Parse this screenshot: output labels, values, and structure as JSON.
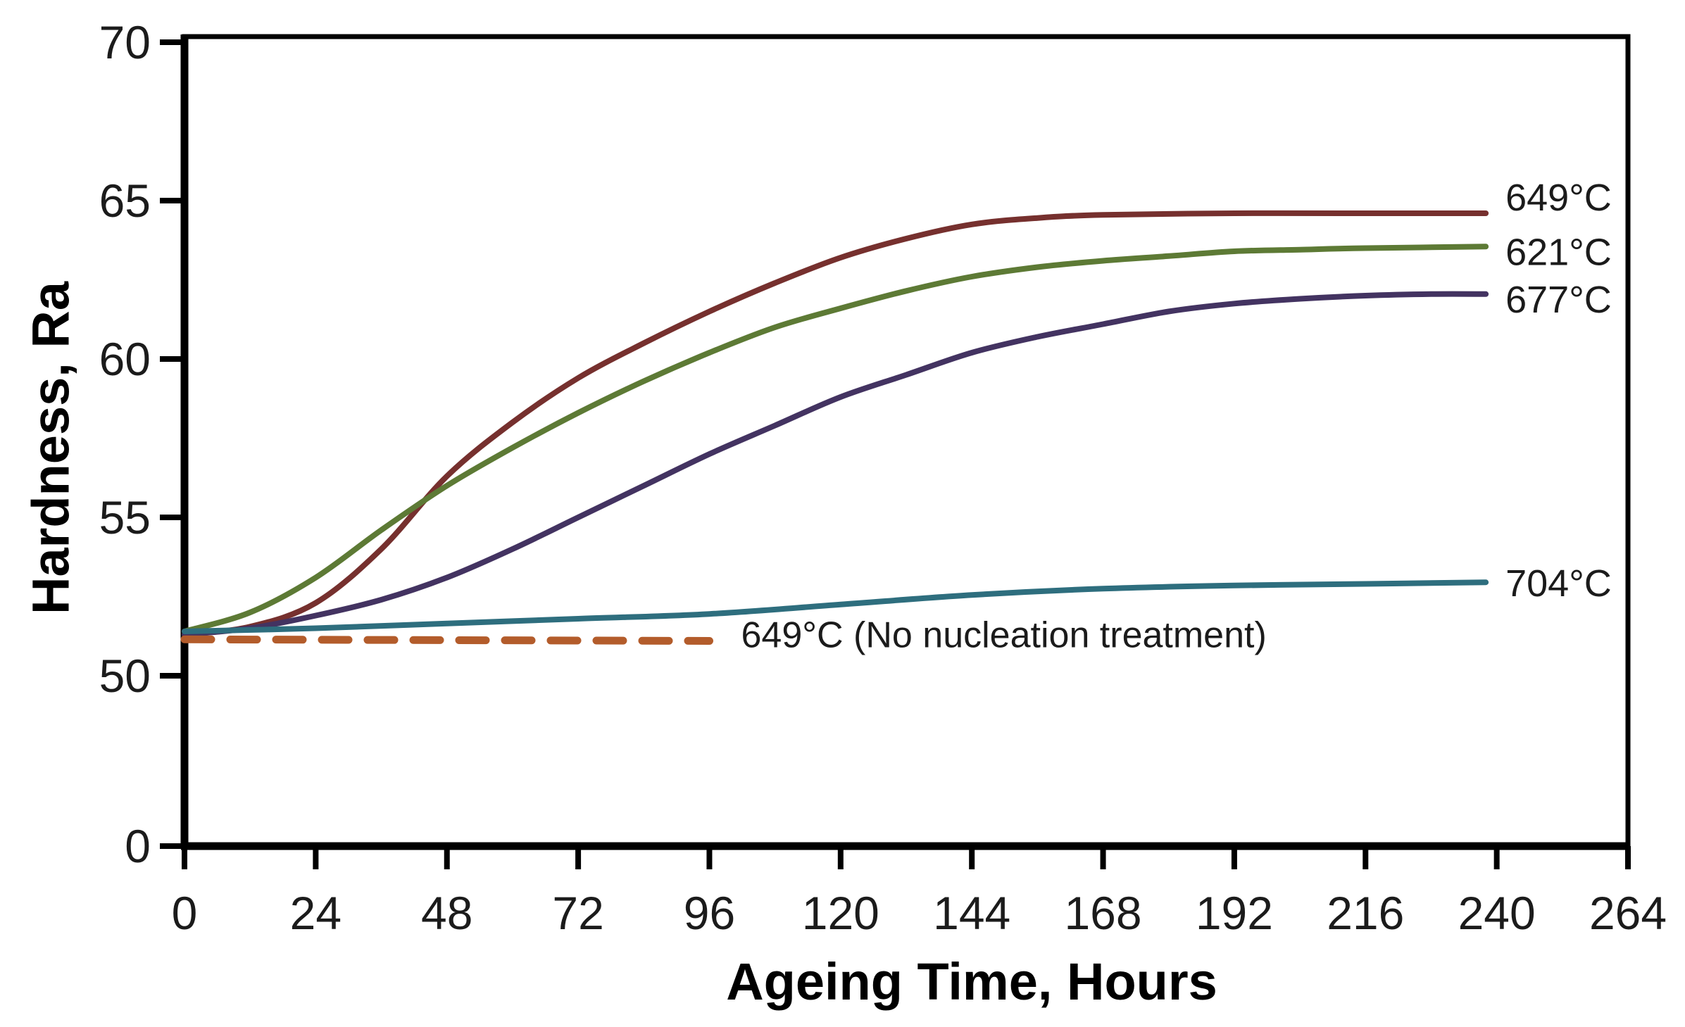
{
  "figure": {
    "background_color": "#ffffff",
    "text_color": "#1b1b1b",
    "axis_color": "#000000"
  },
  "chart_data": {
    "type": "line",
    "title": "",
    "xlabel": "Ageing Time, Hours",
    "ylabel": "Hardness, Ra",
    "grid": false,
    "legend_position": "labels at line ends (right side) and inline",
    "x_axis": {
      "ticks": [
        0,
        24,
        48,
        72,
        96,
        120,
        144,
        168,
        192,
        216,
        240,
        264
      ],
      "range": [
        0,
        264
      ]
    },
    "y_axis": {
      "ticks": [
        70,
        65,
        60,
        55,
        50,
        0
      ],
      "upper_range": [
        50,
        70
      ],
      "broken_axis": true,
      "note": "axis compressed between 0 and 50"
    },
    "series": [
      {
        "name": "649°C",
        "color": "#76302e",
        "dashed": false,
        "label_placement": "end",
        "points": [
          [
            0,
            51.3
          ],
          [
            12,
            51.55
          ],
          [
            24,
            52.3
          ],
          [
            36,
            54.0
          ],
          [
            48,
            56.3
          ],
          [
            60,
            58.0
          ],
          [
            72,
            59.4
          ],
          [
            84,
            60.5
          ],
          [
            96,
            61.5
          ],
          [
            108,
            62.4
          ],
          [
            120,
            63.2
          ],
          [
            132,
            63.8
          ],
          [
            144,
            64.25
          ],
          [
            156,
            64.45
          ],
          [
            168,
            64.55
          ],
          [
            192,
            64.6
          ],
          [
            216,
            64.6
          ],
          [
            238,
            64.6
          ]
        ]
      },
      {
        "name": "621°C",
        "color": "#5d7a35",
        "dashed": false,
        "label_placement": "end",
        "points": [
          [
            0,
            51.4
          ],
          [
            12,
            52.0
          ],
          [
            24,
            53.1
          ],
          [
            36,
            54.6
          ],
          [
            48,
            56.0
          ],
          [
            60,
            57.2
          ],
          [
            72,
            58.3
          ],
          [
            84,
            59.3
          ],
          [
            96,
            60.2
          ],
          [
            108,
            61.0
          ],
          [
            120,
            61.6
          ],
          [
            132,
            62.15
          ],
          [
            144,
            62.6
          ],
          [
            156,
            62.9
          ],
          [
            168,
            63.1
          ],
          [
            180,
            63.25
          ],
          [
            192,
            63.4
          ],
          [
            204,
            63.45
          ],
          [
            216,
            63.5
          ],
          [
            238,
            63.55
          ]
        ]
      },
      {
        "name": "677°C",
        "color": "#433361",
        "dashed": false,
        "label_placement": "end",
        "points": [
          [
            0,
            51.3
          ],
          [
            12,
            51.5
          ],
          [
            24,
            51.9
          ],
          [
            36,
            52.4
          ],
          [
            48,
            53.1
          ],
          [
            60,
            54.0
          ],
          [
            72,
            55.0
          ],
          [
            84,
            56.0
          ],
          [
            96,
            57.0
          ],
          [
            108,
            57.9
          ],
          [
            120,
            58.8
          ],
          [
            132,
            59.5
          ],
          [
            144,
            60.2
          ],
          [
            156,
            60.7
          ],
          [
            168,
            61.1
          ],
          [
            180,
            61.5
          ],
          [
            192,
            61.75
          ],
          [
            204,
            61.9
          ],
          [
            216,
            62.0
          ],
          [
            228,
            62.05
          ],
          [
            238,
            62.05
          ]
        ]
      },
      {
        "name": "704°C",
        "color": "#2e6e7e",
        "dashed": false,
        "label_placement": "end",
        "points": [
          [
            0,
            51.4
          ],
          [
            24,
            51.5
          ],
          [
            48,
            51.65
          ],
          [
            72,
            51.8
          ],
          [
            96,
            51.95
          ],
          [
            120,
            52.25
          ],
          [
            144,
            52.55
          ],
          [
            168,
            52.75
          ],
          [
            192,
            52.85
          ],
          [
            216,
            52.9
          ],
          [
            238,
            52.95
          ]
        ]
      },
      {
        "name": "649°C (No nucleation treatment)",
        "color": "#b35c2b",
        "dashed": true,
        "label_placement": "inline-right",
        "label_color": "#1b1b1b",
        "points": [
          [
            0,
            51.15
          ],
          [
            96,
            51.1
          ]
        ]
      }
    ]
  }
}
